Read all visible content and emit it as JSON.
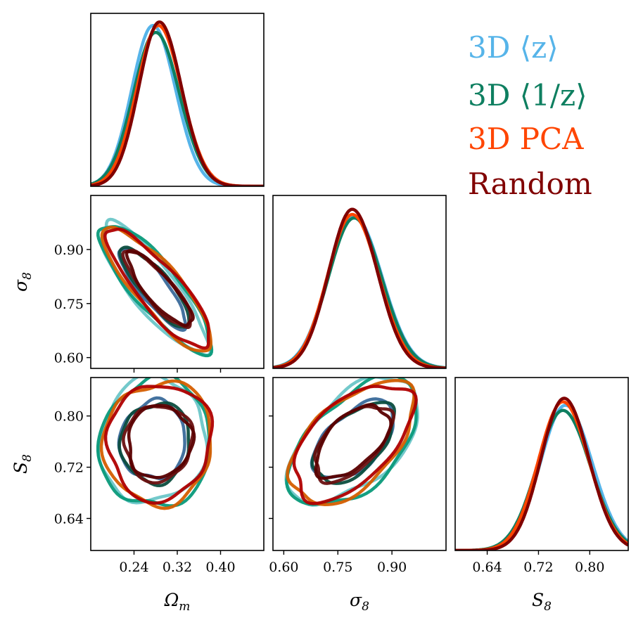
{
  "chart_data": {
    "type": "corner",
    "parameters": [
      {
        "name": "Omega_m",
        "label": "Ω",
        "sub": "m",
        "range": [
          0.16,
          0.48
        ],
        "ticks": [
          "0.24",
          "0.32",
          "0.40"
        ]
      },
      {
        "name": "sigma_8",
        "label": "σ",
        "sub": "8",
        "range": [
          0.57,
          1.05
        ],
        "ticks": [
          "0.60",
          "0.75",
          "0.90"
        ]
      },
      {
        "name": "S_8",
        "label": "S",
        "sub": "8",
        "range": [
          0.59,
          0.86
        ],
        "ticks": [
          "0.64",
          "0.72",
          "0.80"
        ]
      }
    ],
    "series": [
      {
        "name": "3D ⟨z⟩",
        "color": "#56B4E9",
        "inner": "#3a6a9a",
        "outer": "#6cc6c8",
        "mean": {
          "Omega_m": 0.275,
          "sigma_8": 0.795,
          "S_8": 0.762
        },
        "sd": {
          "Omega_m": 0.04,
          "sigma_8": 0.074,
          "S_8": 0.04
        },
        "peak": {
          "Omega_m": 0.93,
          "sigma_8": 0.88,
          "S_8": 0.84
        }
      },
      {
        "name": "3D ⟨1/z⟩",
        "color": "#0e7f60",
        "inner": "#0b4d3e",
        "outer": "#099a7a",
        "mean": {
          "Omega_m": 0.28,
          "sigma_8": 0.795,
          "S_8": 0.758
        },
        "sd": {
          "Omega_m": 0.042,
          "sigma_8": 0.073,
          "S_8": 0.041
        },
        "peak": {
          "Omega_m": 0.89,
          "sigma_8": 0.87,
          "S_8": 0.81
        }
      },
      {
        "name": "3D PCA",
        "color": "#FF4500",
        "inner": "#6a1010",
        "outer": "#d55e00",
        "mean": {
          "Omega_m": 0.285,
          "sigma_8": 0.79,
          "S_8": 0.758
        },
        "sd": {
          "Omega_m": 0.041,
          "sigma_8": 0.07,
          "S_8": 0.039
        },
        "peak": {
          "Omega_m": 0.93,
          "sigma_8": 0.89,
          "S_8": 0.86
        }
      },
      {
        "name": "Random",
        "color": "#800000",
        "inner": "#5a0000",
        "outer": "#b00000",
        "mean": {
          "Omega_m": 0.287,
          "sigma_8": 0.79,
          "S_8": 0.76
        },
        "sd": {
          "Omega_m": 0.039,
          "sigma_8": 0.067,
          "S_8": 0.037
        },
        "peak": {
          "Omega_m": 0.95,
          "sigma_8": 0.92,
          "S_8": 0.88
        }
      }
    ],
    "correlations": {
      "Omega_m|sigma_8": -0.85,
      "Omega_m|S_8": 0.05,
      "sigma_8|S_8": 0.55
    },
    "legend": [
      "3D ⟨z⟩",
      "3D ⟨1/z⟩",
      "3D PCA",
      "Random"
    ]
  }
}
